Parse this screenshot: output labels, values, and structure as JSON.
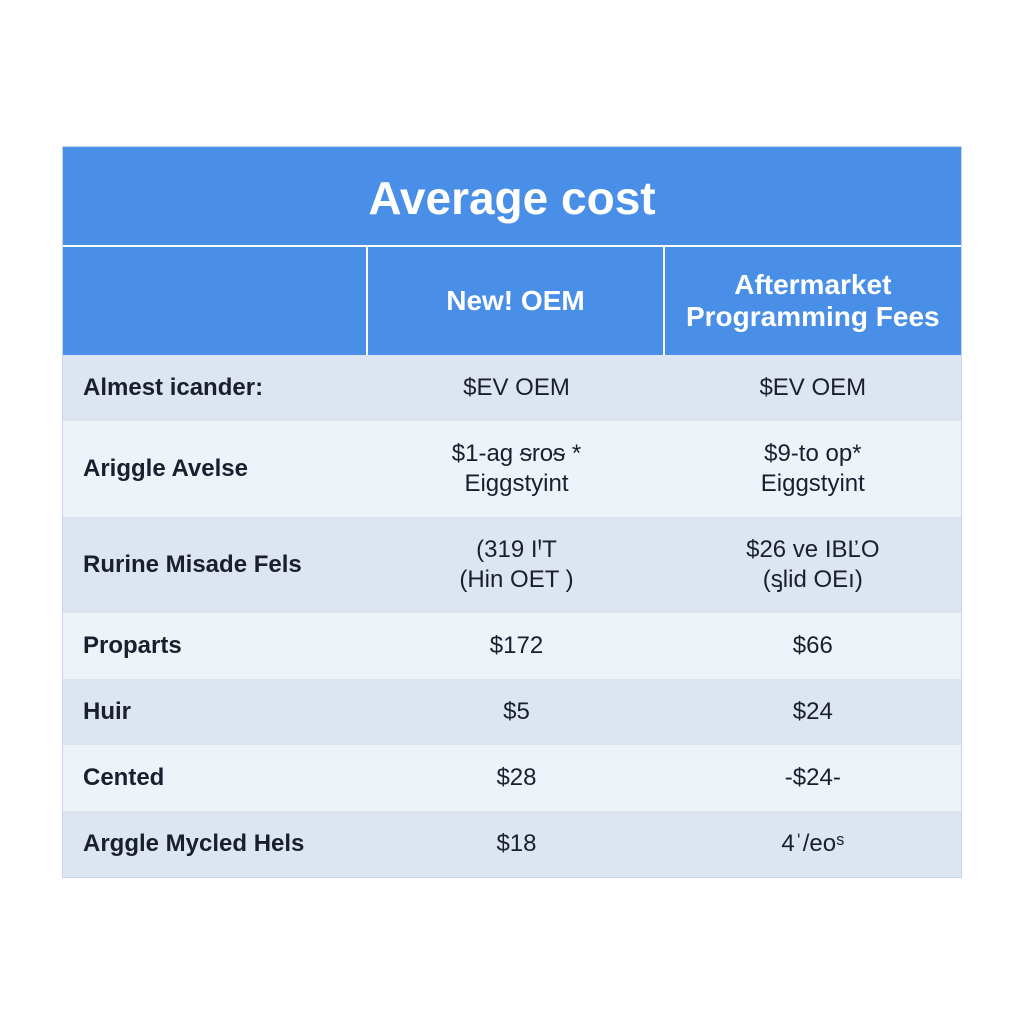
{
  "table": {
    "type": "table",
    "title": "Average cost",
    "title_fontsize": 46,
    "title_color": "#ffffff",
    "header_bg": "#4a8fe7",
    "header_text_color": "#ffffff",
    "header_fontsize": 28,
    "row_odd_bg": "#dde5f2",
    "row_even_bg": "#eef2f9",
    "label_text_color": "#1a1f2e",
    "label_fontsize": 24,
    "value_text_color": "#1a1f2e",
    "value_fontsize": 24,
    "border_color": "#c8d4e8",
    "divider_color": "#ffffff",
    "column_widths": [
      "34%",
      "33%",
      "33%"
    ],
    "columns": [
      "",
      "New! OEM",
      "Aftermarket\nProgramming\nFees"
    ],
    "rows": [
      {
        "label": "Almest icander:",
        "col1": "$EV OEM",
        "col2": "$EV OEM"
      },
      {
        "label": "Ariggle\nAvelse",
        "col1": "$1-ag ᵴroᵴ *\nEiggstyint",
        "col2": "$9-to op*\nEiggstyint"
      },
      {
        "label": "Rurine\nMisade Fels",
        "col1": "(319 IꞋT\n(Hin OET )",
        "col2": "$26 ve IBĽO\n(ᶊlid OEı)"
      },
      {
        "label": "Proparts",
        "col1": "$172",
        "col2": "$66"
      },
      {
        "label": "Huir",
        "col1": "$5",
        "col2": "$24"
      },
      {
        "label": "Cented",
        "col1": "$28",
        "col2": "-$24-"
      },
      {
        "label": "Arggle\nMycled Hels",
        "col1": "$18",
        "col2": "4ˈ/eoˢ"
      }
    ]
  }
}
